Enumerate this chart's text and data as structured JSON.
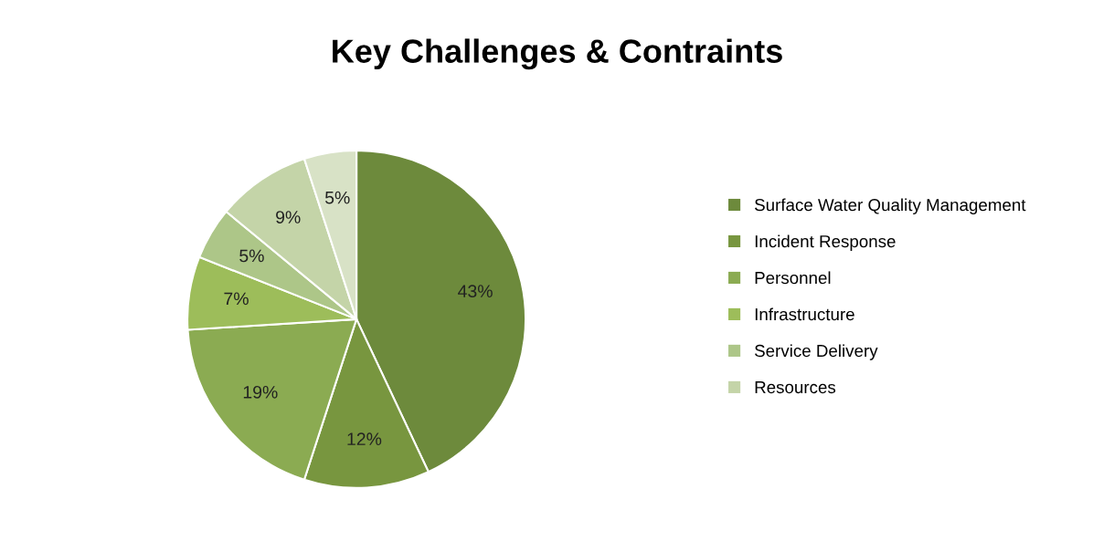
{
  "chart_data": {
    "type": "pie",
    "title": "Key Challenges & Contraints",
    "categories": [
      "Surface Water Quality Management",
      "Incident Response",
      "Personnel",
      "Infrastructure",
      "Service Delivery",
      "Resources",
      null
    ],
    "values": [
      43,
      12,
      19,
      7,
      5,
      9,
      5
    ],
    "colors": [
      "#6d8a3c",
      "#78963f",
      "#8bab52",
      "#9dbd5a",
      "#adc688",
      "#c4d4a8",
      "#d8e2c6"
    ],
    "value_labels": [
      "43%",
      "12%",
      "19%",
      "7%",
      "5%",
      "9%",
      "5%"
    ],
    "legend": "right"
  }
}
